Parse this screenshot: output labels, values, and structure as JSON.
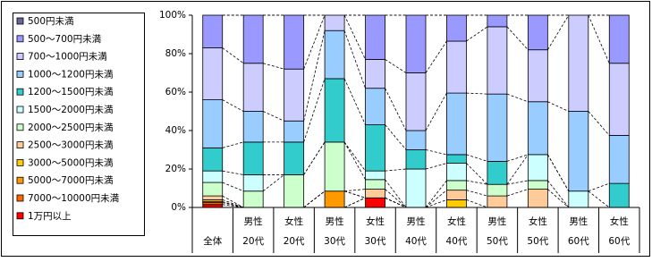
{
  "chart_data": {
    "type": "stacked_bar",
    "categories": [
      [
        "全体"
      ],
      [
        "男性",
        "20代"
      ],
      [
        "女性",
        "20代"
      ],
      [
        "男性",
        "30代"
      ],
      [
        "女性",
        "30代"
      ],
      [
        "男性",
        "40代"
      ],
      [
        "女性",
        "40代"
      ],
      [
        "男性",
        "50代"
      ],
      [
        "女性",
        "50代"
      ],
      [
        "男性",
        "60代"
      ],
      [
        "女性",
        "60代"
      ]
    ],
    "series": [
      {
        "name": "1万円以上",
        "color": "#ff0000",
        "values": [
          1.5,
          0,
          0,
          0,
          5,
          0,
          0,
          0,
          0,
          0,
          0
        ]
      },
      {
        "name": "7000～10000円未満",
        "color": "#ff6600",
        "values": [
          1,
          0,
          0,
          0,
          0,
          0,
          0,
          0,
          0,
          0,
          0
        ]
      },
      {
        "name": "5000～7000円未満",
        "color": "#ff9900",
        "values": [
          0.5,
          0,
          0,
          8.5,
          0,
          0,
          0,
          0,
          0,
          0,
          0
        ]
      },
      {
        "name": "3000～5000円未満",
        "color": "#ffcc00",
        "values": [
          1,
          0,
          0,
          0,
          0,
          0,
          4,
          0,
          0,
          0,
          0
        ]
      },
      {
        "name": "2500～3000円未満",
        "color": "#ffcc99",
        "values": [
          2,
          0,
          0,
          0,
          4.5,
          0,
          5,
          6,
          9.5,
          0,
          0
        ]
      },
      {
        "name": "2000～2500円未満",
        "color": "#ccffcc",
        "values": [
          7,
          8.5,
          17,
          25.5,
          5,
          0,
          5,
          6,
          4.5,
          0,
          0
        ]
      },
      {
        "name": "1500～2000円未満",
        "color": "#ccffff",
        "values": [
          6,
          8.5,
          0,
          0,
          4.5,
          20,
          9,
          0,
          13.5,
          8.5,
          0
        ]
      },
      {
        "name": "1200～1500円未満",
        "color": "#33cccc",
        "values": [
          12,
          17,
          17,
          33,
          24,
          10,
          4.5,
          12,
          0,
          0,
          12.5
        ]
      },
      {
        "name": "1000～1200円未満",
        "color": "#99ccff",
        "values": [
          25,
          16,
          11,
          25,
          19,
          10,
          32,
          35,
          27.5,
          41.5,
          25
        ]
      },
      {
        "name": "700～1000円未満",
        "color": "#ccccff",
        "values": [
          27,
          25,
          27,
          8,
          15,
          30,
          27,
          35,
          27,
          50,
          37.5
        ]
      },
      {
        "name": "500～700円未満",
        "color": "#9999ff",
        "values": [
          17,
          25,
          28,
          0,
          23,
          30,
          13.5,
          6,
          18,
          0,
          25
        ]
      },
      {
        "name": "500円未満",
        "color": "#666699",
        "values": [
          0,
          0,
          0,
          0,
          0,
          0,
          0,
          0,
          0,
          0,
          0
        ]
      }
    ],
    "ylim": [
      0,
      100
    ],
    "yticks": [
      {
        "value": 0,
        "label": "0%"
      },
      {
        "value": 20,
        "label": "20%"
      },
      {
        "value": 40,
        "label": "40%"
      },
      {
        "value": 60,
        "label": "60%"
      },
      {
        "value": 80,
        "label": "80%"
      },
      {
        "value": 100,
        "label": "100%"
      }
    ],
    "series_lines": true
  }
}
